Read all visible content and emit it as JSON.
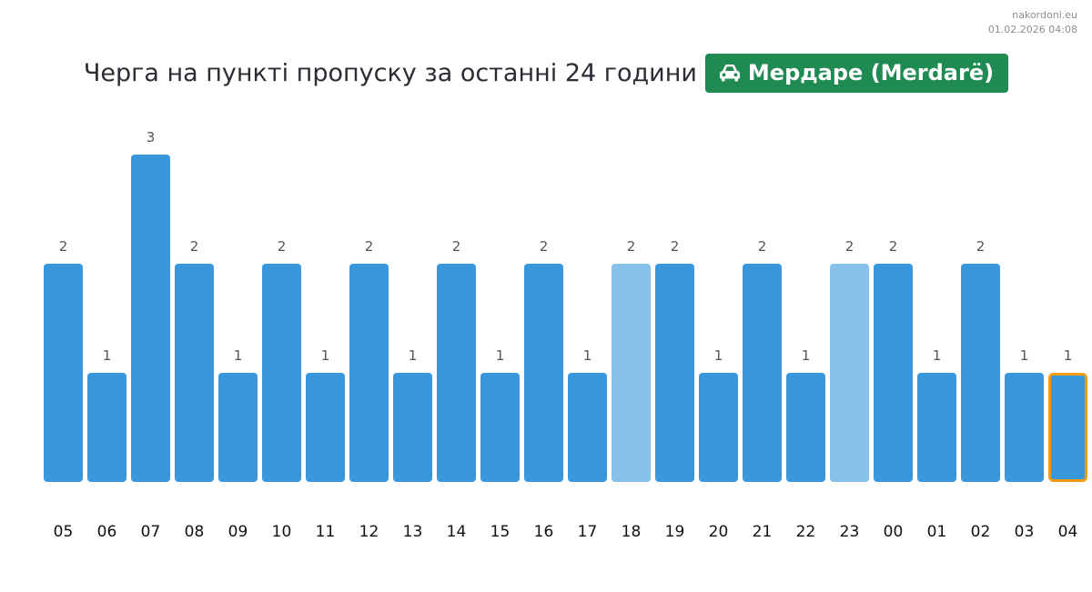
{
  "header": {
    "site": "nakordoni.eu",
    "datetime": "01.02.2026 04:08"
  },
  "title": "Черга на пункті пропуску за останні 24 години",
  "badge": {
    "icon": "car-icon",
    "label": "Мердаре (Merdarë)",
    "color": "#1f8a52"
  },
  "colors": {
    "bar": "#3898db",
    "bar_light": "#85c1e9",
    "highlight_border": "#f39c12",
    "value_label": "#555555",
    "axis_label": "#111111"
  },
  "chart_data": {
    "type": "bar",
    "categories": [
      "05",
      "06",
      "07",
      "08",
      "09",
      "10",
      "11",
      "12",
      "13",
      "14",
      "15",
      "16",
      "17",
      "18",
      "19",
      "20",
      "21",
      "22",
      "23",
      "00",
      "01",
      "02",
      "03",
      "04"
    ],
    "values": [
      2,
      1,
      3,
      2,
      1,
      2,
      1,
      2,
      1,
      2,
      1,
      2,
      1,
      2,
      2,
      1,
      2,
      1,
      2,
      2,
      1,
      2,
      1,
      1
    ],
    "light_categories": [
      "18",
      "23"
    ],
    "highlighted_category": "04",
    "title": "",
    "xlabel": "",
    "ylabel": "",
    "ylim": [
      0,
      3
    ],
    "grid": false,
    "value_labels": true
  }
}
